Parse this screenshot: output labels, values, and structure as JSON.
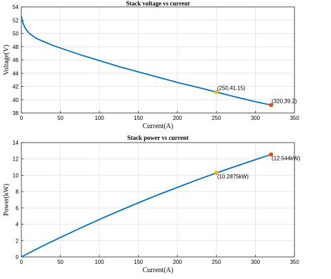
{
  "chart_data": [
    {
      "type": "line",
      "title": "Stack voltage vs current",
      "xlabel": "Current(A)",
      "ylabel": "Voltage(V)",
      "xlim": [
        0,
        350
      ],
      "ylim": [
        38,
        54
      ],
      "xticks": [
        0,
        50,
        100,
        150,
        200,
        250,
        300,
        350
      ],
      "yticks": [
        38,
        40,
        42,
        44,
        46,
        48,
        50,
        52,
        54
      ],
      "grid": true,
      "series": [
        {
          "color": "#0072BD",
          "x": [
            0,
            1,
            2,
            4,
            6,
            8,
            10,
            15,
            20,
            30,
            40,
            50,
            75,
            100,
            125,
            150,
            175,
            200,
            225,
            250,
            275,
            300,
            320
          ],
          "y": [
            52.6,
            52.0,
            51.6,
            51.0,
            50.6,
            50.3,
            50.0,
            49.6,
            49.2,
            48.7,
            48.2,
            47.8,
            46.8,
            45.9,
            45.0,
            44.2,
            43.4,
            42.6,
            41.9,
            41.15,
            40.4,
            39.7,
            39.2
          ]
        }
      ],
      "markers": [
        {
          "x": 250,
          "y": 41.15,
          "label": "(250,41.15)",
          "color": "#EDB120"
        },
        {
          "x": 320,
          "y": 39.2,
          "label": "(320,39.2)",
          "color": "#D95319"
        }
      ]
    },
    {
      "type": "line",
      "title": "Stack power vs current",
      "xlabel": "Current(A)",
      "ylabel": "Power(kW)",
      "xlim": [
        0,
        350
      ],
      "ylim": [
        0,
        14
      ],
      "xticks": [
        0,
        50,
        100,
        150,
        200,
        250,
        300,
        350
      ],
      "yticks": [
        0,
        2,
        4,
        6,
        8,
        10,
        12,
        14
      ],
      "grid": true,
      "series": [
        {
          "color": "#0072BD",
          "x": [
            0,
            25,
            50,
            75,
            100,
            125,
            150,
            175,
            200,
            225,
            250,
            275,
            300,
            320
          ],
          "y": [
            0,
            1.24,
            2.39,
            3.51,
            4.59,
            5.63,
            6.63,
            7.6,
            8.52,
            9.43,
            10.2875,
            11.11,
            11.91,
            12.544
          ]
        }
      ],
      "markers": [
        {
          "x": 250,
          "y": 10.2875,
          "label": "(10.2875kW)",
          "color": "#EDB120"
        },
        {
          "x": 320,
          "y": 12.544,
          "label": "(12.544kW)",
          "color": "#D95319"
        }
      ]
    }
  ]
}
